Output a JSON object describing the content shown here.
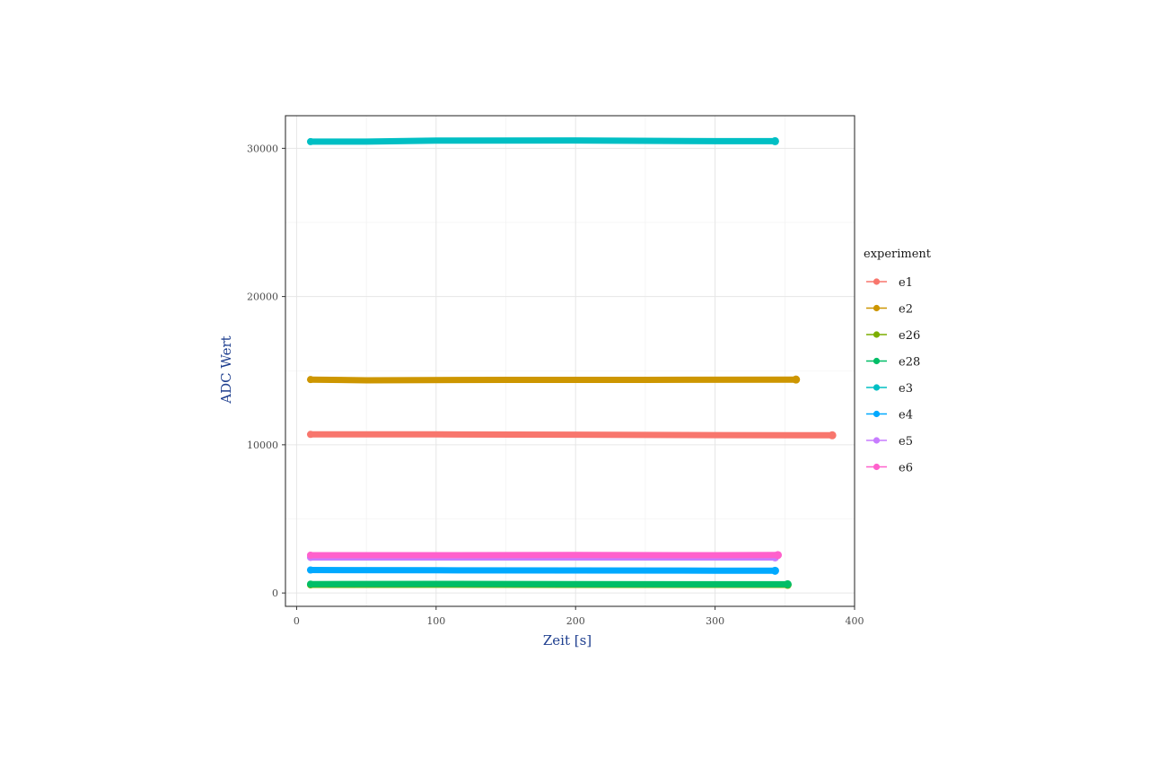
{
  "chart_data": {
    "type": "line",
    "xlabel": "Zeit [s]",
    "ylabel": "ADC Wert",
    "xlim": [
      -8,
      400
    ],
    "ylim": [
      -900,
      32200
    ],
    "x_ticks": [
      0,
      100,
      200,
      300,
      400
    ],
    "x_tick_labels": [
      "0",
      "100",
      "200",
      "300",
      "400"
    ],
    "y_ticks": [
      0,
      10000,
      20000,
      30000
    ],
    "y_tick_labels": [
      "0",
      "10000",
      "20000",
      "30000"
    ],
    "grid": true,
    "legend": {
      "title": "experiment",
      "position": "right"
    },
    "series": [
      {
        "name": "e1",
        "color": "#F8766D",
        "x": [
          10,
          100,
          200,
          300,
          384
        ],
        "y": [
          10700,
          10700,
          10680,
          10650,
          10640
        ]
      },
      {
        "name": "e2",
        "color": "#CD9600",
        "x": [
          10,
          50,
          150,
          250,
          358
        ],
        "y": [
          14400,
          14350,
          14380,
          14380,
          14400
        ]
      },
      {
        "name": "e26",
        "color": "#7CAE00",
        "x": [
          10,
          100,
          200,
          300,
          352
        ],
        "y": [
          550,
          560,
          550,
          550,
          550
        ]
      },
      {
        "name": "e28",
        "color": "#00BE67",
        "x": [
          10,
          100,
          200,
          300,
          352
        ],
        "y": [
          600,
          610,
          600,
          590,
          590
        ]
      },
      {
        "name": "e3",
        "color": "#00BFC4",
        "x": [
          10,
          50,
          100,
          200,
          300,
          343
        ],
        "y": [
          30450,
          30450,
          30520,
          30530,
          30480,
          30480
        ]
      },
      {
        "name": "e4",
        "color": "#00A9FF",
        "x": [
          10,
          100,
          200,
          300,
          343
        ],
        "y": [
          1550,
          1530,
          1520,
          1510,
          1500
        ]
      },
      {
        "name": "e5",
        "color": "#C77CFF",
        "x": [
          10,
          100,
          200,
          300,
          343
        ],
        "y": [
          2400,
          2400,
          2400,
          2400,
          2400
        ]
      },
      {
        "name": "e6",
        "color": "#FF61CC",
        "x": [
          10,
          100,
          200,
          300,
          345
        ],
        "y": [
          2550,
          2550,
          2560,
          2550,
          2560
        ]
      }
    ]
  }
}
